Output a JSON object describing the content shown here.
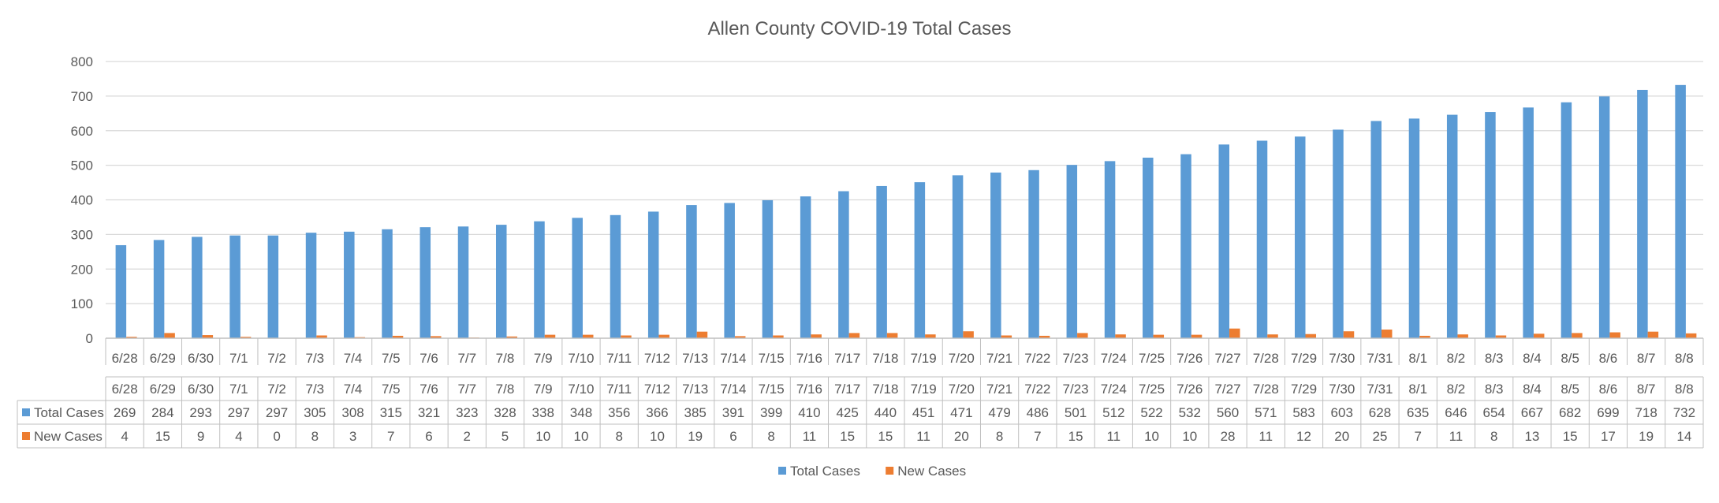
{
  "chart_data": {
    "type": "bar",
    "title": "Allen County COVID-19 Total Cases",
    "xlabel": "",
    "ylabel": "",
    "ylim": [
      0,
      800
    ],
    "yticks": [
      0,
      100,
      200,
      300,
      400,
      500,
      600,
      700,
      800
    ],
    "grid": true,
    "legend_position": "bottom",
    "data_table": true,
    "categories": [
      "6/28",
      "6/29",
      "6/30",
      "7/1",
      "7/2",
      "7/3",
      "7/4",
      "7/5",
      "7/6",
      "7/7",
      "7/8",
      "7/9",
      "7/10",
      "7/11",
      "7/12",
      "7/13",
      "7/14",
      "7/15",
      "7/16",
      "7/17",
      "7/18",
      "7/19",
      "7/20",
      "7/21",
      "7/22",
      "7/23",
      "7/24",
      "7/25",
      "7/26",
      "7/27",
      "7/28",
      "7/29",
      "7/30",
      "7/31",
      "8/1",
      "8/2",
      "8/3",
      "8/4",
      "8/5",
      "8/6",
      "8/7",
      "8/8"
    ],
    "series": [
      {
        "name": "Total Cases",
        "color": "#5B9BD5",
        "values": [
          269,
          284,
          293,
          297,
          297,
          305,
          308,
          315,
          321,
          323,
          328,
          338,
          348,
          356,
          366,
          385,
          391,
          399,
          410,
          425,
          440,
          451,
          471,
          479,
          486,
          501,
          512,
          522,
          532,
          560,
          571,
          583,
          603,
          628,
          635,
          646,
          654,
          667,
          682,
          699,
          718,
          732
        ]
      },
      {
        "name": "New Cases",
        "color": "#ED7D31",
        "values": [
          4,
          15,
          9,
          4,
          0,
          8,
          3,
          7,
          6,
          2,
          5,
          10,
          10,
          8,
          10,
          19,
          6,
          8,
          11,
          15,
          15,
          11,
          20,
          8,
          7,
          15,
          11,
          10,
          10,
          28,
          11,
          12,
          20,
          25,
          7,
          11,
          8,
          13,
          15,
          17,
          19,
          14
        ]
      }
    ]
  }
}
